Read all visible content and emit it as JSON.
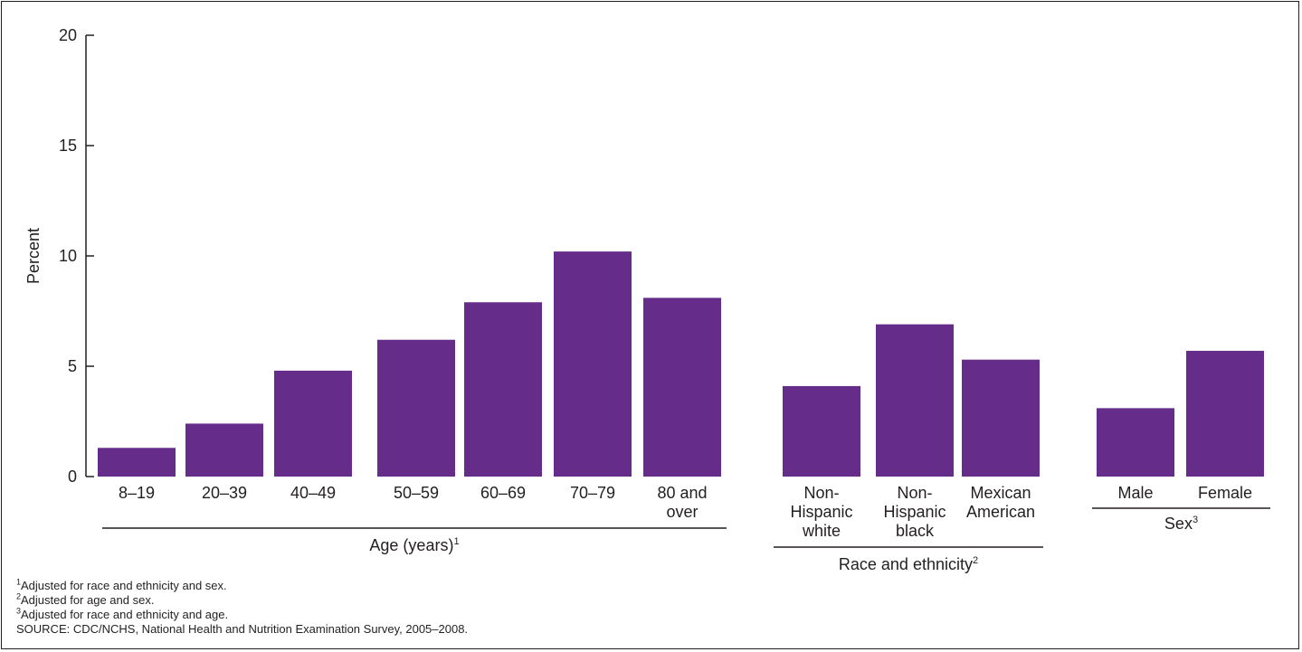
{
  "chart_data": {
    "type": "bar",
    "ylabel": "Percent",
    "ylim": [
      0,
      20
    ],
    "yticks": [
      0,
      5,
      10,
      15,
      20
    ],
    "bar_color": "#652d89",
    "categories": [
      "8–19",
      "20–39",
      "40–49",
      "50–59",
      "60–69",
      "70–79",
      "80 and over",
      "Non-Hispanic white",
      "Non-Hispanic black",
      "Mexican American",
      "Male",
      "Female"
    ],
    "category_lines": [
      [
        "8–19"
      ],
      [
        "20–39"
      ],
      [
        "40–49"
      ],
      [
        "50–59"
      ],
      [
        "60–69"
      ],
      [
        "70–79"
      ],
      [
        "80 and",
        "over"
      ],
      [
        "Non-",
        "Hispanic",
        "white"
      ],
      [
        "Non-",
        "Hispanic",
        "black"
      ],
      [
        "Mexican",
        "American"
      ],
      [
        "Male"
      ],
      [
        "Female"
      ]
    ],
    "values": [
      1.3,
      2.4,
      4.8,
      6.2,
      7.9,
      10.2,
      8.1,
      4.1,
      6.9,
      5.3,
      3.1,
      5.7
    ],
    "groups": [
      {
        "label": "Age (years)",
        "sup": "1",
        "members": [
          0,
          1,
          2,
          3,
          4,
          5,
          6
        ]
      },
      {
        "label": "Race and ethnicity",
        "sup": "2",
        "members": [
          7,
          8,
          9
        ]
      },
      {
        "label": "Sex",
        "sup": "3",
        "members": [
          10,
          11
        ]
      }
    ]
  },
  "footnotes": [
    {
      "sup": "1",
      "text": "Adjusted for race and ethnicity and sex."
    },
    {
      "sup": "2",
      "text": "Adjusted for age and sex."
    },
    {
      "sup": "3",
      "text": "Adjusted for race and ethnicity and age."
    }
  ],
  "source": "SOURCE: CDC/NCHS, National Health and Nutrition Examination Survey, 2005–2008."
}
